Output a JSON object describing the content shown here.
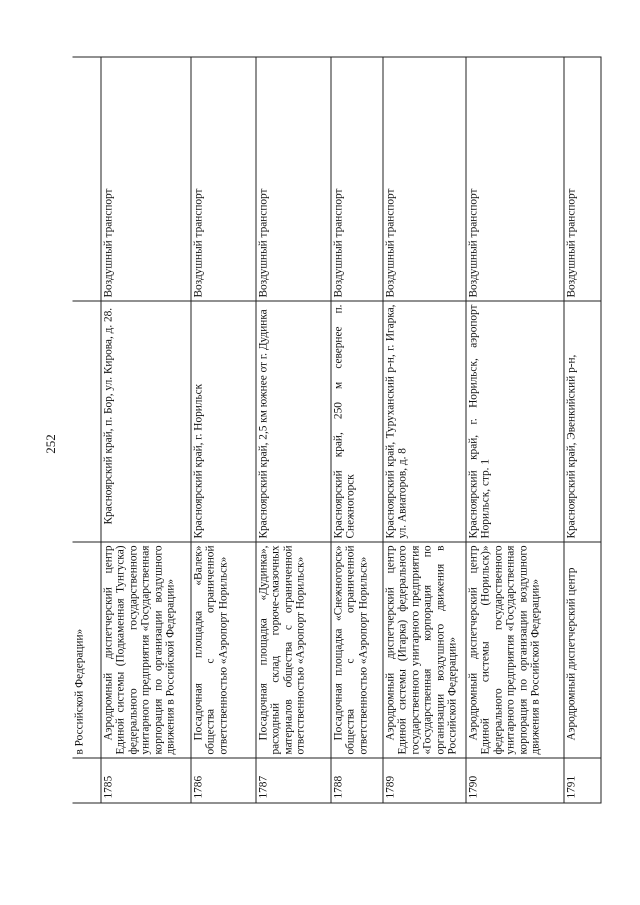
{
  "page_number": "252",
  "table": {
    "continuation": "в Российской Федерации»",
    "rows": [
      {
        "num": "1785",
        "name": "Аэродромный диспетчерский центр Единой системы (Подкаменная Тунгуска) федерального государственного унитарного предприятия «Государственная корпорация по организации воздушного движения в Российской Федерации»",
        "address": "Красноярский край, п. Бор, ул. Кирова, д. 28.",
        "type": "Воздушный транспорт"
      },
      {
        "num": "1786",
        "name": "Посадочная площадка «Валек» общества с ограниченной ответственностью «Аэропорт Норильск»",
        "address": "Красноярский край, г. Норильск",
        "type": "Воздушный транспорт"
      },
      {
        "num": "1787",
        "name": "Посадочная площадка «Дудинка», расходный склад горюче-смазочных материалов общества с ограниченной ответственностью «Аэропорт Норильск»",
        "address": "Красноярский край, 2,5 км южнее от г. Дудинка",
        "type": "Воздушный транспорт"
      },
      {
        "num": "1788",
        "name": "Посадочная площадка «Снежногорск» общества с ограниченной ответственностью «Аэропорт Норильск»",
        "address": "Красноярский край, 250 м севернее п. Снежногорск",
        "type": "Воздушный транспорт"
      },
      {
        "num": "1789",
        "name": "Аэродромный диспетчерский центр Единой системы (Игарка) федерального государственного унитарного предприятия «Государственная корпорация по организации воздушного движения в Российской Федерации»",
        "address": "Красноярский край, Туруханский р-н, г. Игарка, ул. Авиаторов, д. 8",
        "type": "Воздушный транспорт"
      },
      {
        "num": "1790",
        "name": "Аэродромный диспетчерский центр Единой системы (Норильск)» федерального государственного унитарного предприятия «Государственная корпорация по организации воздушного движения в Российской Федерации»",
        "address": "Красноярский край, г. Норильск, аэропорт Норильск, стр. 1",
        "type": "Воздушный транспорт"
      },
      {
        "num": "1791",
        "name": "Аэродромный диспетчерский центр",
        "address": "Красноярский край, Эвенкийский р-н,",
        "type": "Воздушный транспорт"
      }
    ]
  }
}
